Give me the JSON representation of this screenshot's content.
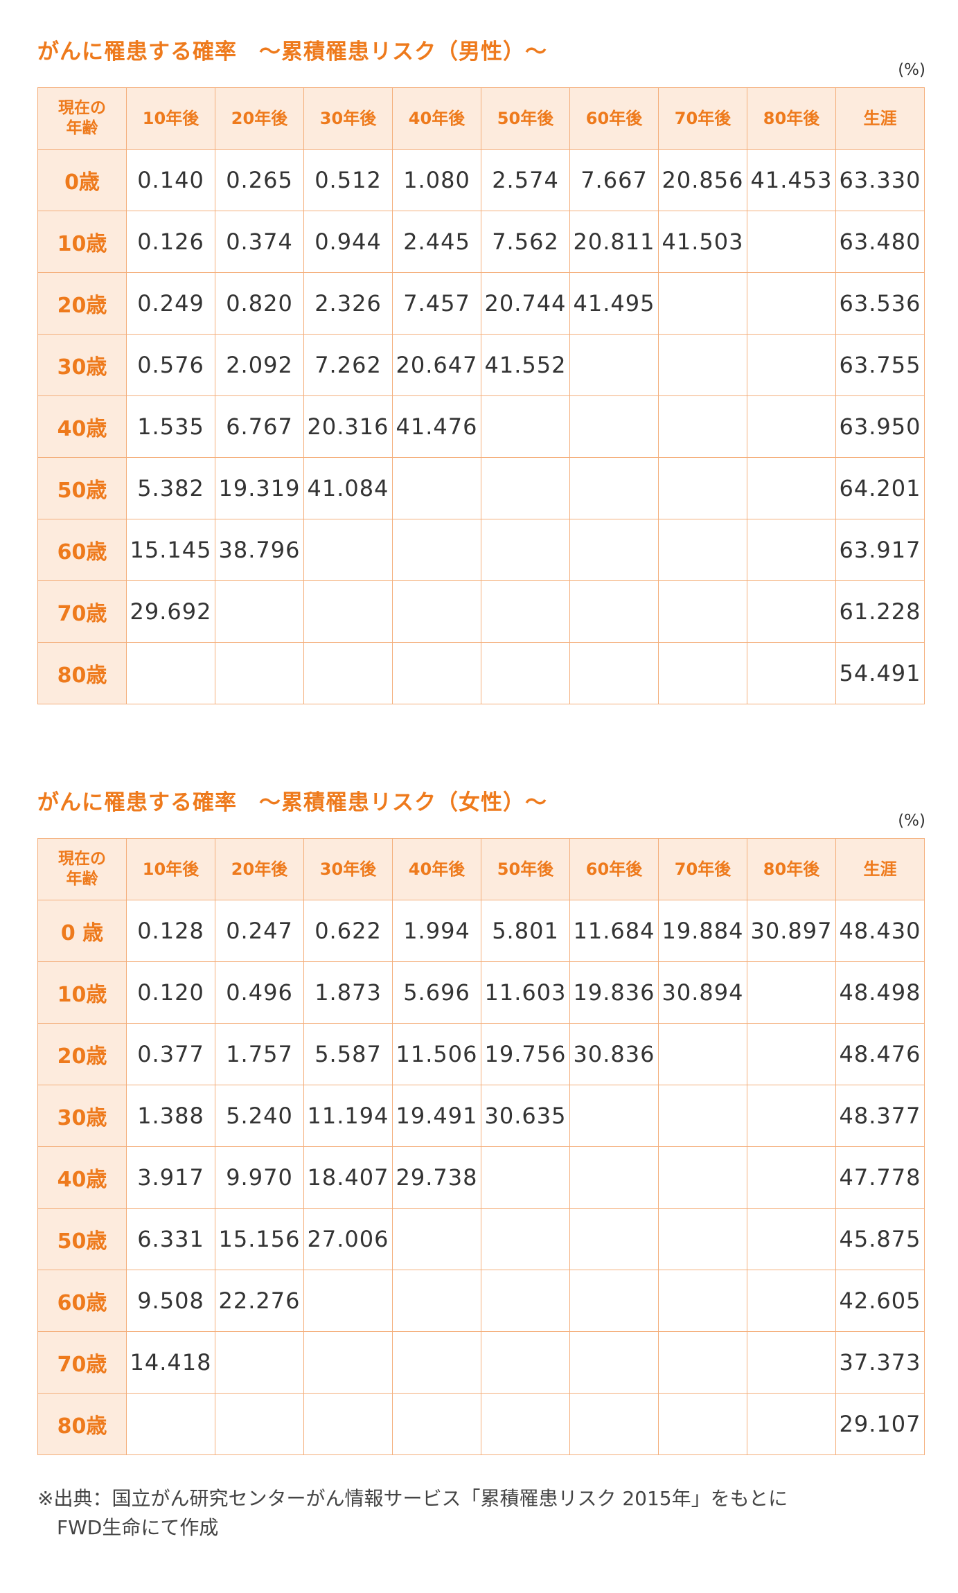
{
  "male": {
    "title": "がんに罹患する確率　～累積罹患リスク（男性）～",
    "unit": "(%)",
    "headers": [
      "現在の\n年齢",
      "10年後",
      "20年後",
      "30年後",
      "40年後",
      "50年後",
      "60年後",
      "70年後",
      "80年後",
      "生涯"
    ],
    "rows": [
      [
        "0歳",
        "0.140",
        "0.265",
        "0.512",
        "1.080",
        "2.574",
        "7.667",
        "20.856",
        "41.453",
        "63.330"
      ],
      [
        "10歳",
        "0.126",
        "0.374",
        "0.944",
        "2.445",
        "7.562",
        "20.811",
        "41.503",
        "",
        "63.480"
      ],
      [
        "20歳",
        "0.249",
        "0.820",
        "2.326",
        "7.457",
        "20.744",
        "41.495",
        "",
        "",
        "63.536"
      ],
      [
        "30歳",
        "0.576",
        "2.092",
        "7.262",
        "20.647",
        "41.552",
        "",
        "",
        "",
        "63.755"
      ],
      [
        "40歳",
        "1.535",
        "6.767",
        "20.316",
        "41.476",
        "",
        "",
        "",
        "",
        "63.950"
      ],
      [
        "50歳",
        "5.382",
        "19.319",
        "41.084",
        "",
        "",
        "",
        "",
        "",
        "64.201"
      ],
      [
        "60歳",
        "15.145",
        "38.796",
        "",
        "",
        "",
        "",
        "",
        "",
        "63.917"
      ],
      [
        "70歳",
        "29.692",
        "",
        "",
        "",
        "",
        "",
        "",
        "",
        "61.228"
      ],
      [
        "80歳",
        "",
        "",
        "",
        "",
        "",
        "",
        "",
        "",
        "54.491"
      ]
    ]
  },
  "female": {
    "title": "がんに罹患する確率　～累積罹患リスク（女性）～",
    "unit": "(%)",
    "headers": [
      "現在の\n年齢",
      "10年後",
      "20年後",
      "30年後",
      "40年後",
      "50年後",
      "60年後",
      "70年後",
      "80年後",
      "生涯"
    ],
    "rows": [
      [
        "0 歳",
        "0.128",
        "0.247",
        "0.622",
        "1.994",
        "5.801",
        "11.684",
        "19.884",
        "30.897",
        "48.430"
      ],
      [
        "10歳",
        "0.120",
        "0.496",
        "1.873",
        "5.696",
        "11.603",
        "19.836",
        "30.894",
        "",
        "48.498"
      ],
      [
        "20歳",
        "0.377",
        "1.757",
        "5.587",
        "11.506",
        "19.756",
        "30.836",
        "",
        "",
        "48.476"
      ],
      [
        "30歳",
        "1.388",
        "5.240",
        "11.194",
        "19.491",
        "30.635",
        "",
        "",
        "",
        "48.377"
      ],
      [
        "40歳",
        "3.917",
        "9.970",
        "18.407",
        "29.738",
        "",
        "",
        "",
        "",
        "47.778"
      ],
      [
        "50歳",
        "6.331",
        "15.156",
        "27.006",
        "",
        "",
        "",
        "",
        "",
        "45.875"
      ],
      [
        "60歳",
        "9.508",
        "22.276",
        "",
        "",
        "",
        "",
        "",
        "",
        "42.605"
      ],
      [
        "70歳",
        "14.418",
        "",
        "",
        "",
        "",
        "",
        "",
        "",
        "37.373"
      ],
      [
        "80歳",
        "",
        "",
        "",
        "",
        "",
        "",
        "",
        "",
        "29.107"
      ]
    ]
  },
  "source": {
    "line1": "※出典：国立がん研究センターがん情報サービス「累積罹患リスク 2015年」をもとに",
    "line2": "FWD生命にて作成"
  },
  "colors": {
    "accent": "#EE7A1C",
    "header_bg": "#FDEBDD",
    "border": "#F4AE7A"
  }
}
